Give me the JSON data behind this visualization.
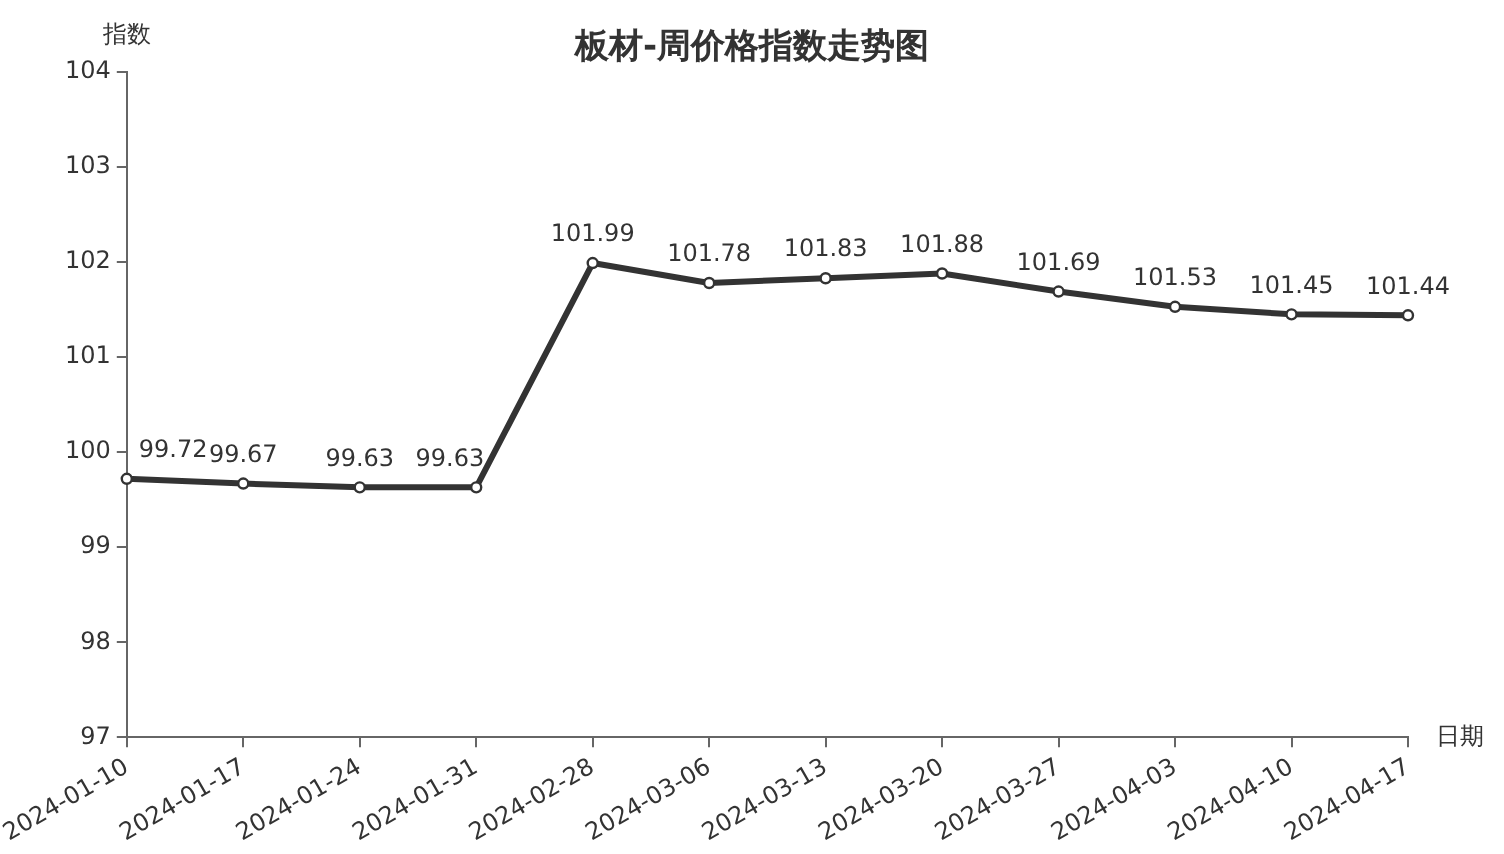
{
  "chart_data": {
    "type": "line",
    "title": "板材-周价格指数走势图",
    "xlabel": "日期",
    "ylabel": "指数",
    "categories": [
      "2024-01-10",
      "2024-01-17",
      "2024-01-24",
      "2024-01-31",
      "2024-02-28",
      "2024-03-06",
      "2024-03-13",
      "2024-03-20",
      "2024-03-27",
      "2024-04-03",
      "2024-04-10",
      "2024-04-17"
    ],
    "series": [
      {
        "color": "#333333",
        "values": [
          99.72,
          99.67,
          99.63,
          99.63,
          101.99,
          101.78,
          101.83,
          101.88,
          101.69,
          101.53,
          101.45,
          101.44
        ]
      }
    ],
    "ylim": [
      97,
      104
    ],
    "yticks": [
      97,
      98,
      99,
      100,
      101,
      102,
      103,
      104
    ],
    "grid": false,
    "legend": false,
    "marker": "circle",
    "line_style": "solid",
    "data_labels": true
  }
}
